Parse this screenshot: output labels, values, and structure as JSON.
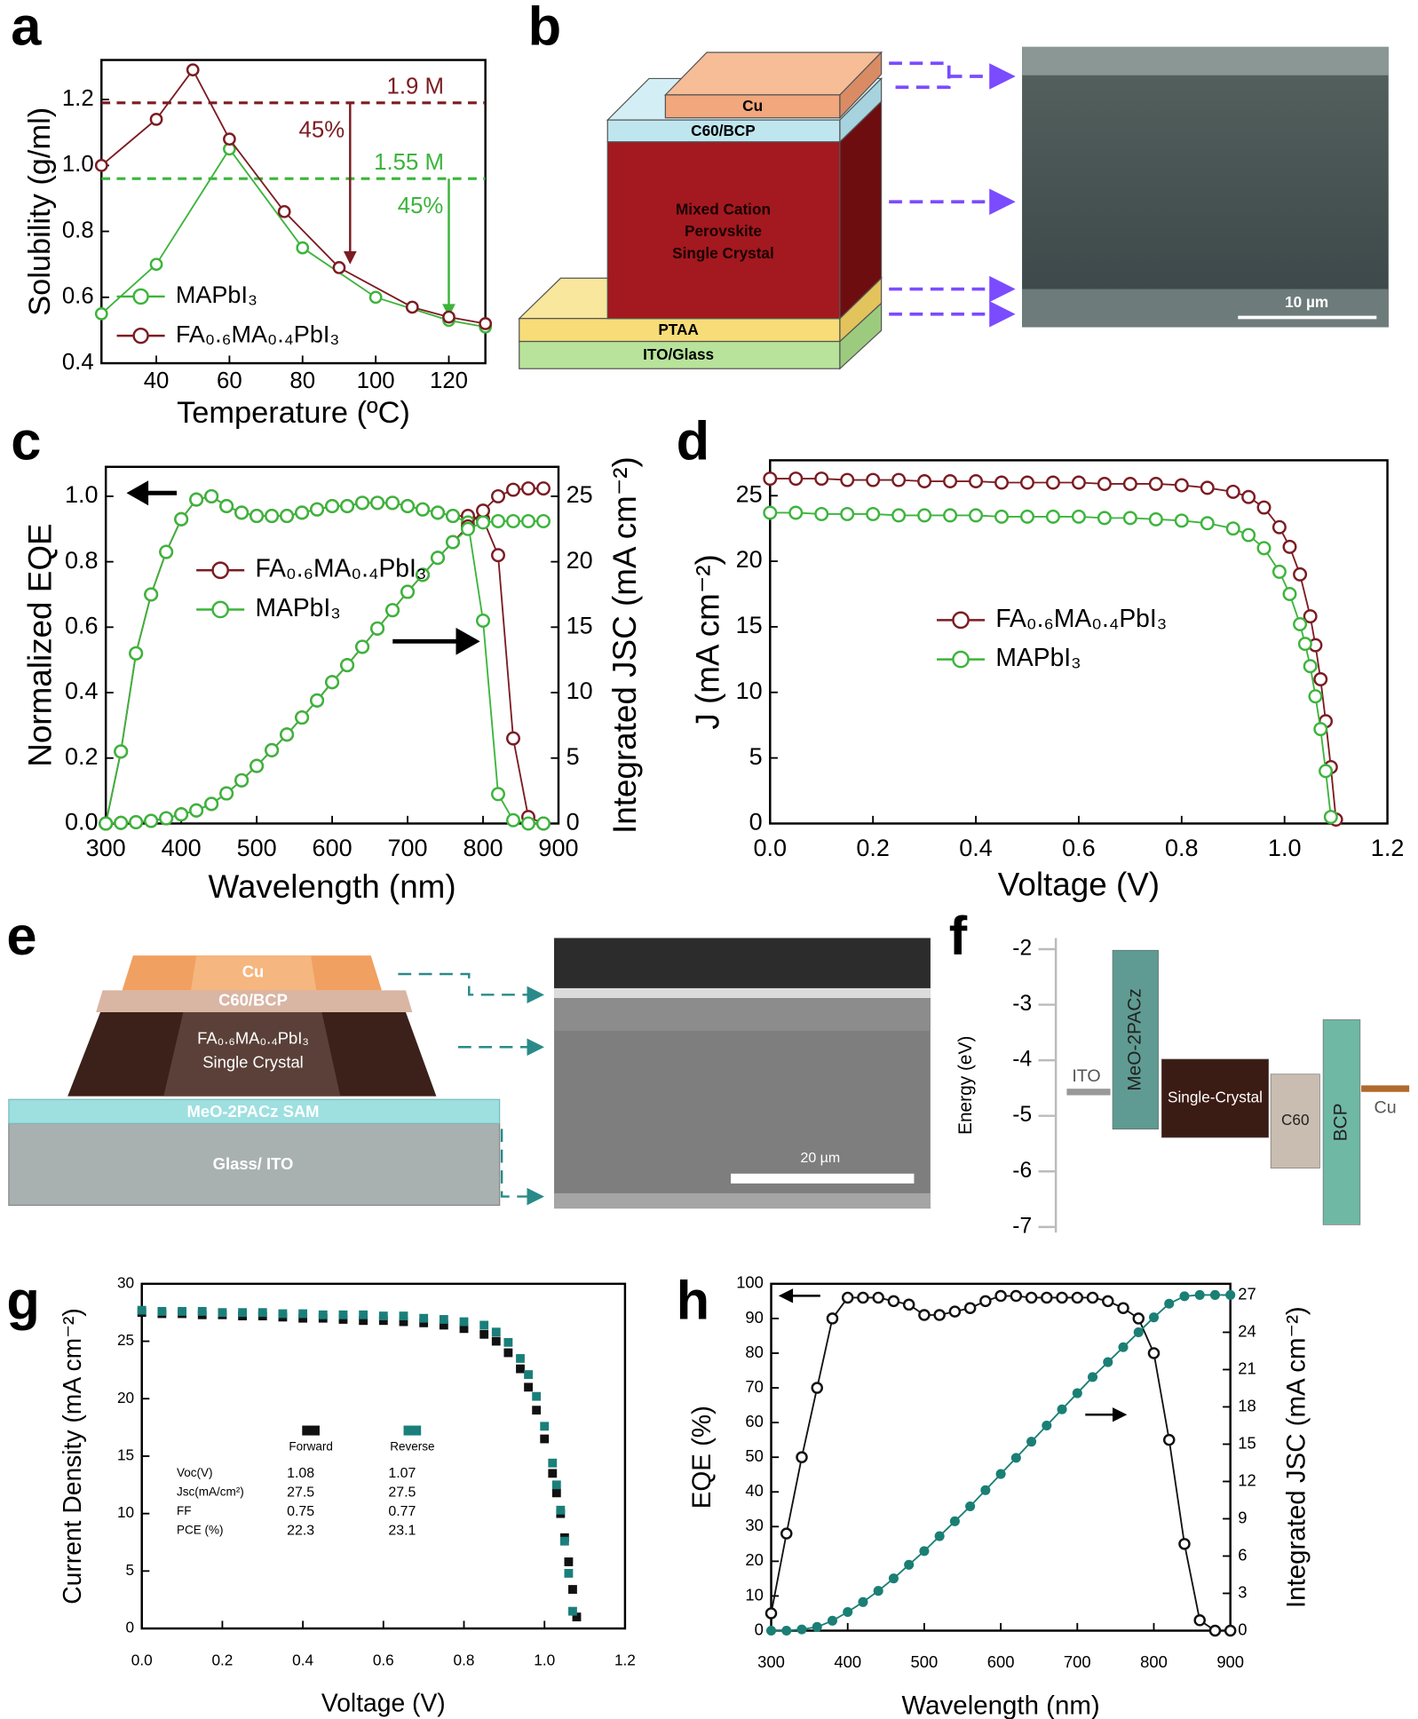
{
  "chart_data": [
    {
      "panel": "a",
      "type": "line",
      "xlabel": "Temperature (ºC)",
      "ylabel": "Solubility (g/ml)",
      "xlim": [
        25,
        130
      ],
      "ylim": [
        0.4,
        1.32
      ],
      "xticks": [
        40,
        60,
        80,
        100,
        120
      ],
      "yticks": [
        0.4,
        0.6,
        0.8,
        {
          "value": 1,
          "label": "1.0"
        },
        1.2
      ],
      "legend": "lower left",
      "series": [
        {
          "name": "MAPbI₃",
          "color": "#3cb43c",
          "marker": "circle-open",
          "x": [
            25,
            40,
            60,
            80,
            100,
            120,
            130
          ],
          "values": [
            0.55,
            0.7,
            1.05,
            0.75,
            0.6,
            0.53,
            0.51
          ]
        },
        {
          "name": "FA₀.₆MA₀.₄PbI₃",
          "color": "#7b1c22",
          "marker": "circle-open",
          "x": [
            25,
            40,
            50,
            60,
            75,
            90,
            110,
            120,
            130
          ],
          "values": [
            1.0,
            1.14,
            1.29,
            1.08,
            0.86,
            0.69,
            0.57,
            0.54,
            0.52
          ]
        }
      ],
      "hlines": [
        {
          "value": 1.19,
          "label": "1.9 M",
          "color": "#7b1c22"
        },
        {
          "value": 0.96,
          "label": "1.55 M",
          "color": "#3cb43c"
        }
      ],
      "arrows": [
        {
          "x": 93,
          "from": 1.19,
          "to": 0.7,
          "label": "45%",
          "color": "#7b1c22"
        },
        {
          "x": 120,
          "from": 0.96,
          "to": 0.54,
          "label": "45%",
          "color": "#3cb43c"
        }
      ]
    },
    {
      "panel": "c",
      "type": "line",
      "xlabel": "Wavelength (nm)",
      "ylabel": "Normalized EQE",
      "y2label": "Integrated JSC (mA cm⁻²)",
      "xlim": [
        300,
        900
      ],
      "ylim": [
        0,
        1.09
      ],
      "y2lim": [
        0,
        27.25
      ],
      "xticks": [
        300,
        400,
        500,
        600,
        700,
        800,
        900
      ],
      "yticks": [
        {
          "value": 0,
          "label": "0.0"
        },
        0.2,
        0.4,
        0.6,
        0.8,
        {
          "value": 1,
          "label": "1.0"
        }
      ],
      "y2ticks": [
        0,
        5,
        10,
        15,
        20,
        25
      ],
      "legend": "center left",
      "x": [
        300,
        320,
        340,
        360,
        380,
        400,
        420,
        440,
        460,
        480,
        500,
        520,
        540,
        560,
        580,
        600,
        620,
        640,
        660,
        680,
        700,
        720,
        740,
        760,
        780,
        800,
        820,
        840,
        860,
        880
      ],
      "series": [
        {
          "name": "FA₀.₆MA₀.₄PbI₃",
          "color": "#7b1c22",
          "marker": "circle-open",
          "values": [
            0,
            0.22,
            0.52,
            0.7,
            0.83,
            0.93,
            0.99,
            1.0,
            0.97,
            0.95,
            0.94,
            0.94,
            0.94,
            0.95,
            0.96,
            0.97,
            0.97,
            0.98,
            0.98,
            0.98,
            0.97,
            0.96,
            0.95,
            0.94,
            0.94,
            0.93,
            0.82,
            0.26,
            0.02,
            0
          ]
        },
        {
          "name": "MAPbI₃",
          "color": "#3cb43c",
          "marker": "circle-open",
          "values": [
            0,
            0.22,
            0.52,
            0.7,
            0.83,
            0.93,
            0.99,
            1.0,
            0.97,
            0.95,
            0.94,
            0.94,
            0.94,
            0.95,
            0.96,
            0.97,
            0.97,
            0.98,
            0.98,
            0.98,
            0.97,
            0.96,
            0.95,
            0.94,
            0.92,
            0.62,
            0.09,
            0.01,
            0,
            0
          ]
        },
        {
          "color": "#7b1c22",
          "marker": "circle-open",
          "axis": "y2",
          "values": [
            0,
            0.05,
            0.1,
            0.2,
            0.4,
            0.7,
            1.0,
            1.5,
            2.3,
            3.3,
            4.4,
            5.6,
            6.8,
            8.1,
            9.4,
            10.8,
            12.1,
            13.5,
            14.9,
            16.3,
            17.7,
            19.0,
            20.3,
            21.5,
            22.7,
            23.9,
            25.0,
            25.5,
            25.6,
            25.6
          ]
        },
        {
          "color": "#3cb43c",
          "marker": "circle-open",
          "axis": "y2",
          "values": [
            0,
            0.05,
            0.1,
            0.2,
            0.4,
            0.7,
            1.0,
            1.5,
            2.3,
            3.3,
            4.4,
            5.6,
            6.8,
            8.1,
            9.4,
            10.8,
            12.1,
            13.5,
            14.9,
            16.3,
            17.7,
            19.0,
            20.3,
            21.5,
            22.5,
            23.0,
            23.1,
            23.1,
            23.1,
            23.1
          ]
        }
      ]
    },
    {
      "panel": "d",
      "type": "line",
      "xlabel": "Voltage (V)",
      "ylabel": "J (mA cm⁻²)",
      "xlim": [
        0,
        1.2
      ],
      "ylim": [
        0,
        27.7
      ],
      "xticks": [
        {
          "value": 0,
          "label": "0.0"
        },
        0.2,
        0.4,
        0.6,
        0.8,
        {
          "value": 1,
          "label": "1.0"
        },
        1.2
      ],
      "yticks": [
        0,
        5,
        10,
        15,
        20,
        25
      ],
      "legend": "center",
      "series": [
        {
          "name": "FA₀.₆MA₀.₄PbI₃",
          "color": "#7b1c22",
          "marker": "circle-open",
          "x": [
            0,
            0.05,
            0.1,
            0.15,
            0.2,
            0.25,
            0.3,
            0.35,
            0.4,
            0.45,
            0.5,
            0.55,
            0.6,
            0.65,
            0.7,
            0.75,
            0.8,
            0.85,
            0.9,
            0.93,
            0.96,
            0.99,
            1.01,
            1.03,
            1.05,
            1.06,
            1.07,
            1.08,
            1.09,
            1.1
          ],
          "values": [
            26.3,
            26.3,
            26.3,
            26.2,
            26.2,
            26.2,
            26.1,
            26.1,
            26.1,
            26.0,
            26.0,
            26.0,
            26.0,
            25.9,
            25.9,
            25.9,
            25.8,
            25.6,
            25.3,
            24.9,
            24.1,
            22.6,
            21.1,
            19.0,
            15.8,
            13.6,
            11.0,
            7.8,
            4.3,
            0.3
          ]
        },
        {
          "name": "MAPbI₃",
          "color": "#3cb43c",
          "marker": "circle-open",
          "x": [
            0,
            0.05,
            0.1,
            0.15,
            0.2,
            0.25,
            0.3,
            0.35,
            0.4,
            0.45,
            0.5,
            0.55,
            0.6,
            0.65,
            0.7,
            0.75,
            0.8,
            0.85,
            0.9,
            0.93,
            0.96,
            0.99,
            1.01,
            1.03,
            1.04,
            1.05,
            1.06,
            1.07,
            1.08,
            1.09
          ],
          "values": [
            23.7,
            23.7,
            23.6,
            23.6,
            23.6,
            23.5,
            23.5,
            23.5,
            23.5,
            23.4,
            23.4,
            23.4,
            23.4,
            23.3,
            23.3,
            23.2,
            23.1,
            22.9,
            22.5,
            22.0,
            21.0,
            19.2,
            17.5,
            15.2,
            13.7,
            12.0,
            9.7,
            7.2,
            4.0,
            0.5
          ]
        }
      ]
    },
    {
      "panel": "f",
      "type": "energy",
      "ylabel": "Energy (eV)",
      "ylim": [
        -7.1,
        -1.8
      ],
      "yticks": [
        -2,
        -3,
        -4,
        -5,
        -6,
        -7
      ],
      "bars": [
        {
          "name": "MeO-2PACz",
          "range": [
            -2.02,
            -5.24
          ],
          "color": "#5f9b92"
        },
        {
          "name": "Single-Crystal",
          "range": [
            -3.98,
            -5.39
          ],
          "color": "#3b1c14"
        },
        {
          "name": "C60",
          "range": [
            -4.25,
            -5.94
          ],
          "color": "#c9bcb0"
        },
        {
          "name": "BCP",
          "range": [
            -3.27,
            -6.96
          ],
          "color": "#6fb8a4"
        }
      ],
      "levels": [
        {
          "name": "ITO",
          "value": -4.57,
          "color": "#999999"
        },
        {
          "name": "Cu",
          "value": -4.51,
          "color": "#b06a2c"
        }
      ]
    },
    {
      "panel": "g",
      "type": "scatter",
      "xlabel": "Voltage (V)",
      "ylabel": "Current Density (mA cm⁻²)",
      "xlim": [
        0,
        1.2
      ],
      "ylim": [
        0,
        30
      ],
      "xticks": [
        {
          "value": 0,
          "label": "0.0"
        },
        0.2,
        0.4,
        0.6,
        0.8,
        {
          "value": 1,
          "label": "1.0"
        },
        1.2
      ],
      "yticks": [
        0,
        5,
        10,
        15,
        20,
        25,
        30
      ],
      "x": [
        0,
        0.05,
        0.1,
        0.15,
        0.2,
        0.25,
        0.3,
        0.35,
        0.4,
        0.45,
        0.5,
        0.55,
        0.6,
        0.65,
        0.7,
        0.75,
        0.8,
        0.85,
        0.88,
        0.91,
        0.94,
        0.96,
        0.98,
        1.0,
        1.02,
        1.03,
        1.04,
        1.05,
        1.06,
        1.07,
        1.08
      ],
      "series": [
        {
          "name": "Forward",
          "color": "#111111",
          "marker": "square",
          "values": [
            27.5,
            27.4,
            27.4,
            27.3,
            27.3,
            27.2,
            27.2,
            27.1,
            27.0,
            27.0,
            26.9,
            26.8,
            26.8,
            26.7,
            26.6,
            26.4,
            26.1,
            25.6,
            25.0,
            24.0,
            22.6,
            21.0,
            19.0,
            16.5,
            13.5,
            11.8,
            10.0,
            7.9,
            5.8,
            3.4,
            1.0
          ]
        },
        {
          "name": "Reverse",
          "color": "#1a7f7a",
          "marker": "square",
          "values": [
            27.7,
            27.6,
            27.6,
            27.6,
            27.5,
            27.5,
            27.5,
            27.4,
            27.4,
            27.3,
            27.3,
            27.3,
            27.2,
            27.2,
            27.0,
            26.9,
            26.7,
            26.4,
            25.8,
            24.9,
            23.5,
            22.1,
            20.2,
            17.6,
            14.4,
            12.5,
            10.3,
            7.6,
            4.8,
            1.5,
            null
          ]
        }
      ],
      "table": {
        "rows": [
          {
            "label": "Voc(V)",
            "values": [
              1.08,
              1.07
            ]
          },
          {
            "label": "Jsc(mA/cm²)",
            "values": [
              27.5,
              27.5
            ]
          },
          {
            "label": "FF",
            "values": [
              0.75,
              0.77
            ]
          },
          {
            "label": "PCE (%)",
            "values": [
              22.3,
              23.1
            ]
          }
        ]
      }
    },
    {
      "panel": "h",
      "type": "line",
      "xlabel": "Wavelength (nm)",
      "ylabel": "EQE (%)",
      "y2label": "Integrated JSC (mA cm⁻²)",
      "xlim": [
        300,
        900
      ],
      "ylim": [
        0,
        100
      ],
      "y2lim": [
        0,
        27.9
      ],
      "xticks": [
        300,
        400,
        500,
        600,
        700,
        800,
        900
      ],
      "yticks": [
        0,
        10,
        20,
        30,
        40,
        50,
        60,
        70,
        80,
        90,
        100
      ],
      "y2ticks": [
        0,
        3,
        6,
        9,
        12,
        15,
        18,
        21,
        24,
        27
      ],
      "x": [
        300,
        320,
        340,
        360,
        380,
        400,
        420,
        440,
        460,
        480,
        500,
        520,
        540,
        560,
        580,
        600,
        620,
        640,
        660,
        680,
        700,
        720,
        740,
        760,
        780,
        800,
        820,
        840,
        860,
        880,
        900
      ],
      "series": [
        {
          "color": "#111111",
          "marker": "circle-open",
          "values": [
            5,
            28,
            50,
            70,
            90,
            96,
            96,
            96,
            95,
            94,
            91,
            91,
            92,
            93,
            95,
            96.5,
            96.5,
            96,
            96,
            96,
            96,
            96,
            95,
            93,
            90,
            80,
            55,
            25,
            3,
            0,
            0
          ]
        },
        {
          "color": "#1a7f74",
          "marker": "circle",
          "axis": "y2",
          "values": [
            0,
            0,
            0.1,
            0.3,
            0.8,
            1.5,
            2.3,
            3.2,
            4.2,
            5.3,
            6.4,
            7.6,
            8.8,
            10.0,
            11.3,
            12.6,
            13.9,
            15.2,
            16.5,
            17.8,
            19.1,
            20.4,
            21.6,
            22.8,
            24.0,
            25.2,
            26.3,
            26.9,
            27.0,
            27.0,
            27.0
          ]
        }
      ]
    }
  ],
  "diagrams": [
    {
      "panel": "b",
      "layers": {
        "cu": "Cu",
        "etl": "C60/BCP",
        "absorber": [
          "Mixed Cation",
          "Perovskite",
          "Single Crystal"
        ],
        "htl": "PTAA",
        "substrate": "ITO/Glass"
      },
      "scale_bar": "10 µm"
    },
    {
      "panel": "e",
      "layers": {
        "cu": "Cu",
        "etl": "C60/BCP",
        "absorber": [
          "FA₀.₆MA₀.₄PbI₃",
          "Single Crystal"
        ],
        "htl": "MeO-2PACz SAM",
        "substrate": "Glass/ ITO"
      },
      "scale_bar": "20 µm"
    }
  ]
}
